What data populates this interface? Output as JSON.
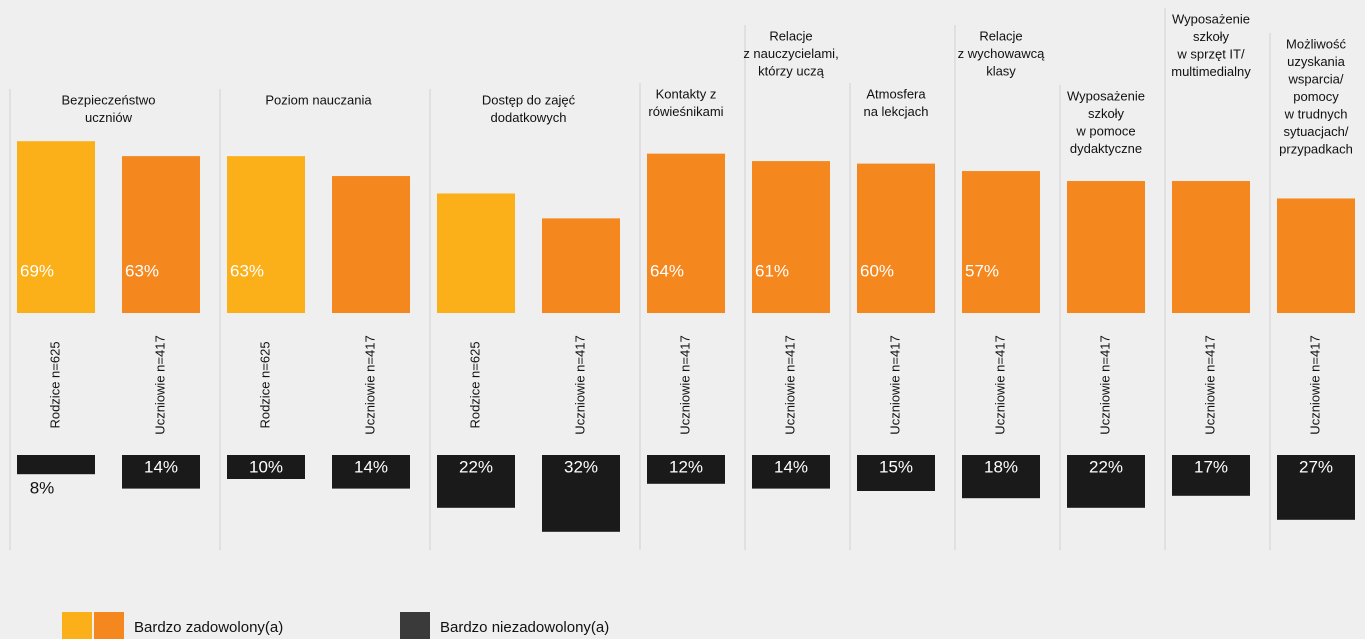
{
  "chart_data": {
    "type": "bar",
    "groups": [
      {
        "title": [
          "Bezpieczeństwo",
          "uczniów"
        ],
        "respondents": [
          "Rodzice n=625",
          "Uczniowie n=417"
        ],
        "satisfied": [
          69,
          63
        ],
        "satisfied_labels": [
          "69%",
          "63%"
        ],
        "satisfied_colors": [
          "#fbb01a",
          "#f5871f"
        ],
        "dissatisfied": [
          8,
          14
        ],
        "dissatisfied_labels": [
          "8%",
          "14%"
        ]
      },
      {
        "title": [
          "Poziom nauczania"
        ],
        "respondents": [
          "Rodzice n=625",
          "Uczniowie n=417"
        ],
        "satisfied": [
          63,
          55
        ],
        "satisfied_labels": [
          "63%",
          null
        ],
        "satisfied_colors": [
          "#fbb01a",
          "#f5871f"
        ],
        "dissatisfied": [
          10,
          14
        ],
        "dissatisfied_labels": [
          "10%",
          "14%"
        ]
      },
      {
        "title": [
          "Dostęp do zajęć",
          "dodatkowych"
        ],
        "respondents": [
          "Rodzice n=625",
          "Uczniowie n=417"
        ],
        "satisfied": [
          48,
          38
        ],
        "satisfied_labels": [
          null,
          null
        ],
        "satisfied_colors": [
          "#fbb01a",
          "#f5871f"
        ],
        "dissatisfied": [
          22,
          32
        ],
        "dissatisfied_labels": [
          "22%",
          "32%"
        ]
      },
      {
        "title": [
          "Kontakty z",
          "rówieśnikami"
        ],
        "respondents": [
          "Uczniowie n=417"
        ],
        "satisfied": [
          64
        ],
        "satisfied_labels": [
          "64%"
        ],
        "satisfied_colors": [
          "#f5871f"
        ],
        "dissatisfied": [
          12
        ],
        "dissatisfied_labels": [
          "12%"
        ]
      },
      {
        "title": [
          "Relacje",
          "z nauczycielami,",
          "którzy uczą"
        ],
        "respondents": [
          "Uczniowie n=417"
        ],
        "satisfied": [
          61
        ],
        "satisfied_labels": [
          "61%"
        ],
        "satisfied_colors": [
          "#f5871f"
        ],
        "dissatisfied": [
          14
        ],
        "dissatisfied_labels": [
          "14%"
        ]
      },
      {
        "title": [
          "Atmosfera",
          "na lekcjach"
        ],
        "respondents": [
          "Uczniowie n=417"
        ],
        "satisfied": [
          60
        ],
        "satisfied_labels": [
          "60%"
        ],
        "satisfied_colors": [
          "#f5871f"
        ],
        "dissatisfied": [
          15
        ],
        "dissatisfied_labels": [
          "15%"
        ]
      },
      {
        "title": [
          "Relacje",
          "z wychowawcą",
          "klasy"
        ],
        "respondents": [
          "Uczniowie n=417"
        ],
        "satisfied": [
          57
        ],
        "satisfied_labels": [
          "57%"
        ],
        "satisfied_colors": [
          "#f5871f"
        ],
        "dissatisfied": [
          18
        ],
        "dissatisfied_labels": [
          "18%"
        ]
      },
      {
        "title": [
          "Wyposażenie",
          "szkoły",
          "w pomoce",
          "dydaktyczne"
        ],
        "respondents": [
          "Uczniowie n=417"
        ],
        "satisfied": [
          53
        ],
        "satisfied_labels": [
          null
        ],
        "satisfied_colors": [
          "#f5871f"
        ],
        "dissatisfied": [
          22
        ],
        "dissatisfied_labels": [
          "22%"
        ]
      },
      {
        "title": [
          "Wyposażenie",
          "szkoły",
          "w sprzęt IT/",
          "multimedialny"
        ],
        "respondents": [
          "Uczniowie n=417"
        ],
        "satisfied": [
          53
        ],
        "satisfied_labels": [
          null
        ],
        "satisfied_colors": [
          "#f5871f"
        ],
        "dissatisfied": [
          17
        ],
        "dissatisfied_labels": [
          "17%"
        ]
      },
      {
        "title": [
          "Możliwość",
          "uzyskania",
          "wsparcia/",
          "pomocy",
          "w trudnych",
          "sytuacjach/",
          "przypadkach"
        ],
        "respondents": [
          "Uczniowie n=417"
        ],
        "satisfied": [
          46
        ],
        "satisfied_labels": [
          null
        ],
        "satisfied_colors": [
          "#f5871f"
        ],
        "dissatisfied": [
          27
        ],
        "dissatisfied_labels": [
          "27%"
        ]
      }
    ],
    "dissatisfied_color": "#1a1a1a",
    "legend": [
      {
        "name": "Bardzo zadowolony(a)",
        "colors": [
          "#fbb01a",
          "#f5871f"
        ]
      },
      {
        "name": "Bardzo niezadowolony(a)",
        "colors": [
          "#3a3a3a"
        ]
      }
    ]
  }
}
